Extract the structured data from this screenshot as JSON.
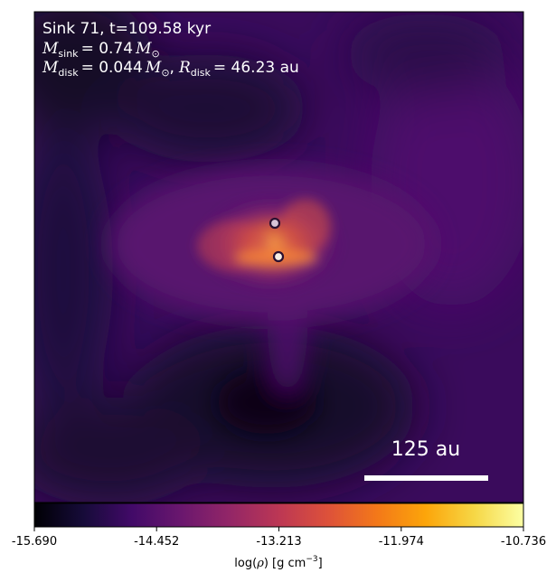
{
  "panel": {
    "title_line1": "Sink 71, t=109.58 kyr",
    "title_line2": {
      "symbol": "M",
      "subscript": "sink",
      "value": "= 0.74",
      "unit_symbol": "M",
      "unit_subscript": "⊙"
    },
    "title_line3": {
      "symbol": "M",
      "subscript": "disk",
      "value": "= 0.044",
      "unit_symbol": "M",
      "unit_subscript": "⊙",
      "separator": ",",
      "symbol2": "R",
      "subscript2": "disk",
      "value2": "= 46.23 au"
    },
    "scale_bar_label": "125 au",
    "sinks": [
      {
        "name": "sink-upper",
        "fill": "#d8c4d8"
      },
      {
        "name": "sink-lower",
        "fill": "#f6efe4"
      }
    ]
  },
  "colorbar": {
    "colormap": "inferno",
    "min": -15.69,
    "max": -10.736,
    "tick_labels": [
      "-15.690",
      "-14.452",
      "-13.213",
      "-11.974",
      "-10.736"
    ],
    "tick_values": [
      -15.69,
      -14.452,
      -13.213,
      -11.974,
      -10.736
    ],
    "label_prefix": "log(",
    "label_rho": "ρ",
    "label_mid": ") [g cm",
    "label_exp": "−3",
    "label_suffix": "]"
  },
  "colors": {
    "dark": "#0b0519",
    "background": "#3a0b5c",
    "glow": "#f0772a",
    "text": "#ffffff",
    "scale_bar": "#ffffff"
  }
}
